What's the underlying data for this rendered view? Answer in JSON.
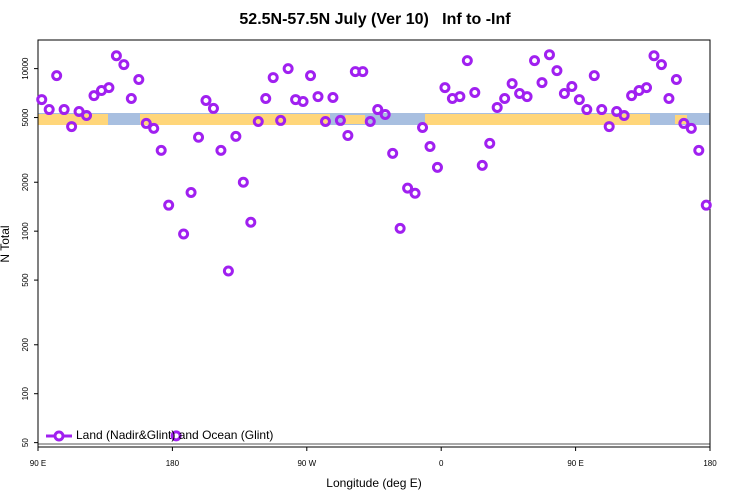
{
  "chart_data": {
    "type": "scatter",
    "title": "52.5N-57.5N July (Ver 10)   Inf to -Inf",
    "x_label": "Longitude (deg E)",
    "y_label": "N Total",
    "log_y": true,
    "legend": "bottom-left",
    "xlim": [
      90,
      540
    ],
    "xticks": [
      {
        "value": 90,
        "label": "90 E"
      },
      180,
      {
        "value": 270,
        "label": "90 W"
      },
      {
        "value": 360,
        "label": "0"
      },
      {
        "value": 450,
        "label": "90 E"
      },
      {
        "value": 540,
        "label": "180"
      }
    ],
    "ylim": [
      47,
      15000
    ],
    "yticks": [
      50,
      100,
      200,
      500,
      1000,
      2000,
      5000,
      10000
    ],
    "series": [
      {
        "name": "Land (Nadir&Glint) and Ocean (Glint)",
        "color": "#a020f0",
        "x": [
          92.5,
          97.5,
          102.5,
          107.5,
          112.5,
          117.5,
          122.5,
          127.5,
          132.5,
          137.5,
          142.5,
          147.5,
          152.5,
          157.5,
          162.5,
          167.5,
          172.5,
          177.5,
          182.5,
          187.5,
          192.5,
          197.5,
          202.5,
          207.5,
          212.5,
          217.5,
          222.5,
          227.5,
          232.5,
          237.5,
          242.5,
          247.5,
          252.5,
          257.5,
          262.5,
          267.5,
          272.5,
          277.5,
          282.5,
          287.5,
          292.5,
          297.5,
          302.5,
          307.5,
          312.5,
          317.5,
          322.5,
          327.5,
          332.5,
          337.5,
          342.5,
          347.5,
          352.5,
          357.5,
          362.5,
          367.5,
          372.5,
          377.5,
          382.5,
          387.5,
          392.5,
          397.5,
          402.5,
          407.5,
          412.5,
          417.5,
          422.5,
          427.5,
          432.5,
          437.5,
          442.5,
          447.5,
          452.5,
          457.5,
          462.5,
          467.5,
          472.5,
          477.5,
          482.5,
          487.5,
          492.5,
          497.5,
          502.5,
          507.5,
          512.5,
          517.5,
          522.5,
          527.5,
          532.5,
          537.5
        ],
        "values": [
          6450,
          5600,
          9060,
          5600,
          4400,
          5450,
          5150,
          6820,
          7330,
          7640,
          12000,
          10580,
          6550,
          8570,
          4600,
          4290,
          3140,
          1445,
          55,
          960,
          1730,
          3780,
          6370,
          5690,
          3140,
          569,
          3830,
          2000,
          1135,
          4730,
          6550,
          8810,
          4800,
          10000,
          6450,
          6280,
          9060,
          6730,
          4730,
          6640,
          4800,
          3880,
          9590,
          9590,
          4730,
          5600,
          5220,
          3010,
          1040,
          1840,
          1710,
          4340,
          3320,
          2470,
          7640,
          6550,
          6730,
          11200,
          7130,
          2540,
          3470,
          5770,
          6550,
          8090,
          7030,
          6730,
          11200,
          8200,
          12180,
          9720,
          7030,
          7760,
          6450,
          5600,
          9060,
          5600,
          4400,
          5450,
          5150,
          6820,
          7330,
          7640,
          12000,
          10580,
          6550,
          8570,
          4600,
          4290,
          3140,
          1445
        ]
      }
    ]
  }
}
